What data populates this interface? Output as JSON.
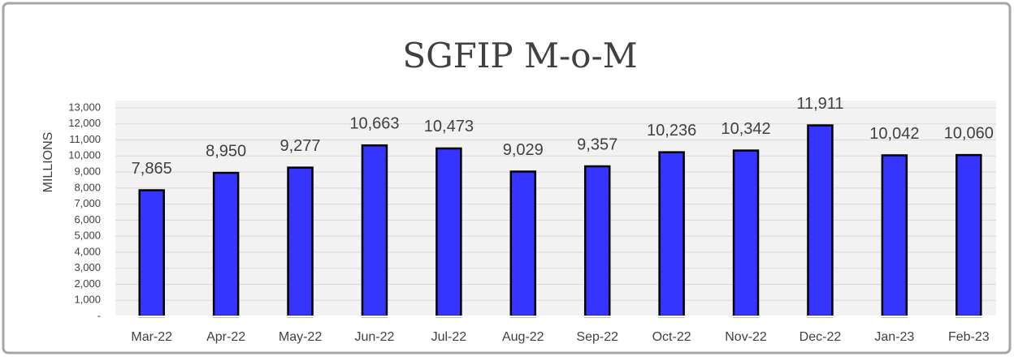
{
  "chart_data": {
    "type": "bar",
    "title": "SGFIP M-o-M",
    "y_label": "MILLIONS",
    "categories": [
      "Mar-22",
      "Apr-22",
      "May-22",
      "Jun-22",
      "Jul-22",
      "Aug-22",
      "Sep-22",
      "Oct-22",
      "Nov-22",
      "Dec-22",
      "Jan-23",
      "Feb-23"
    ],
    "values": [
      7865,
      8950,
      9277,
      10663,
      10473,
      9029,
      9357,
      10236,
      10342,
      11911,
      10042,
      10060
    ],
    "value_labels": [
      "7,865",
      "8,950",
      "9,277",
      "10,663",
      "10,473",
      "9,029",
      "9,357",
      "10,236",
      "10,342",
      "11,911",
      "10,042",
      "10,060"
    ],
    "color": "#3535ff",
    "ylim": [
      0,
      13000
    ],
    "yticks": [
      {
        "value": 0,
        "label": "-"
      },
      {
        "value": 1000,
        "label": "1,000"
      },
      {
        "value": 2000,
        "label": "2,000"
      },
      {
        "value": 3000,
        "label": "3,000"
      },
      {
        "value": 4000,
        "label": "4,000"
      },
      {
        "value": 5000,
        "label": "5,000"
      },
      {
        "value": 6000,
        "label": "6,000"
      },
      {
        "value": 7000,
        "label": "7,000"
      },
      {
        "value": 8000,
        "label": "8,000"
      },
      {
        "value": 9000,
        "label": "9,000"
      },
      {
        "value": 10000,
        "label": "10,000"
      },
      {
        "value": 11000,
        "label": "11,000"
      },
      {
        "value": 12000,
        "label": "12,000"
      },
      {
        "value": 13000,
        "label": "13,000"
      }
    ],
    "grid": true
  }
}
